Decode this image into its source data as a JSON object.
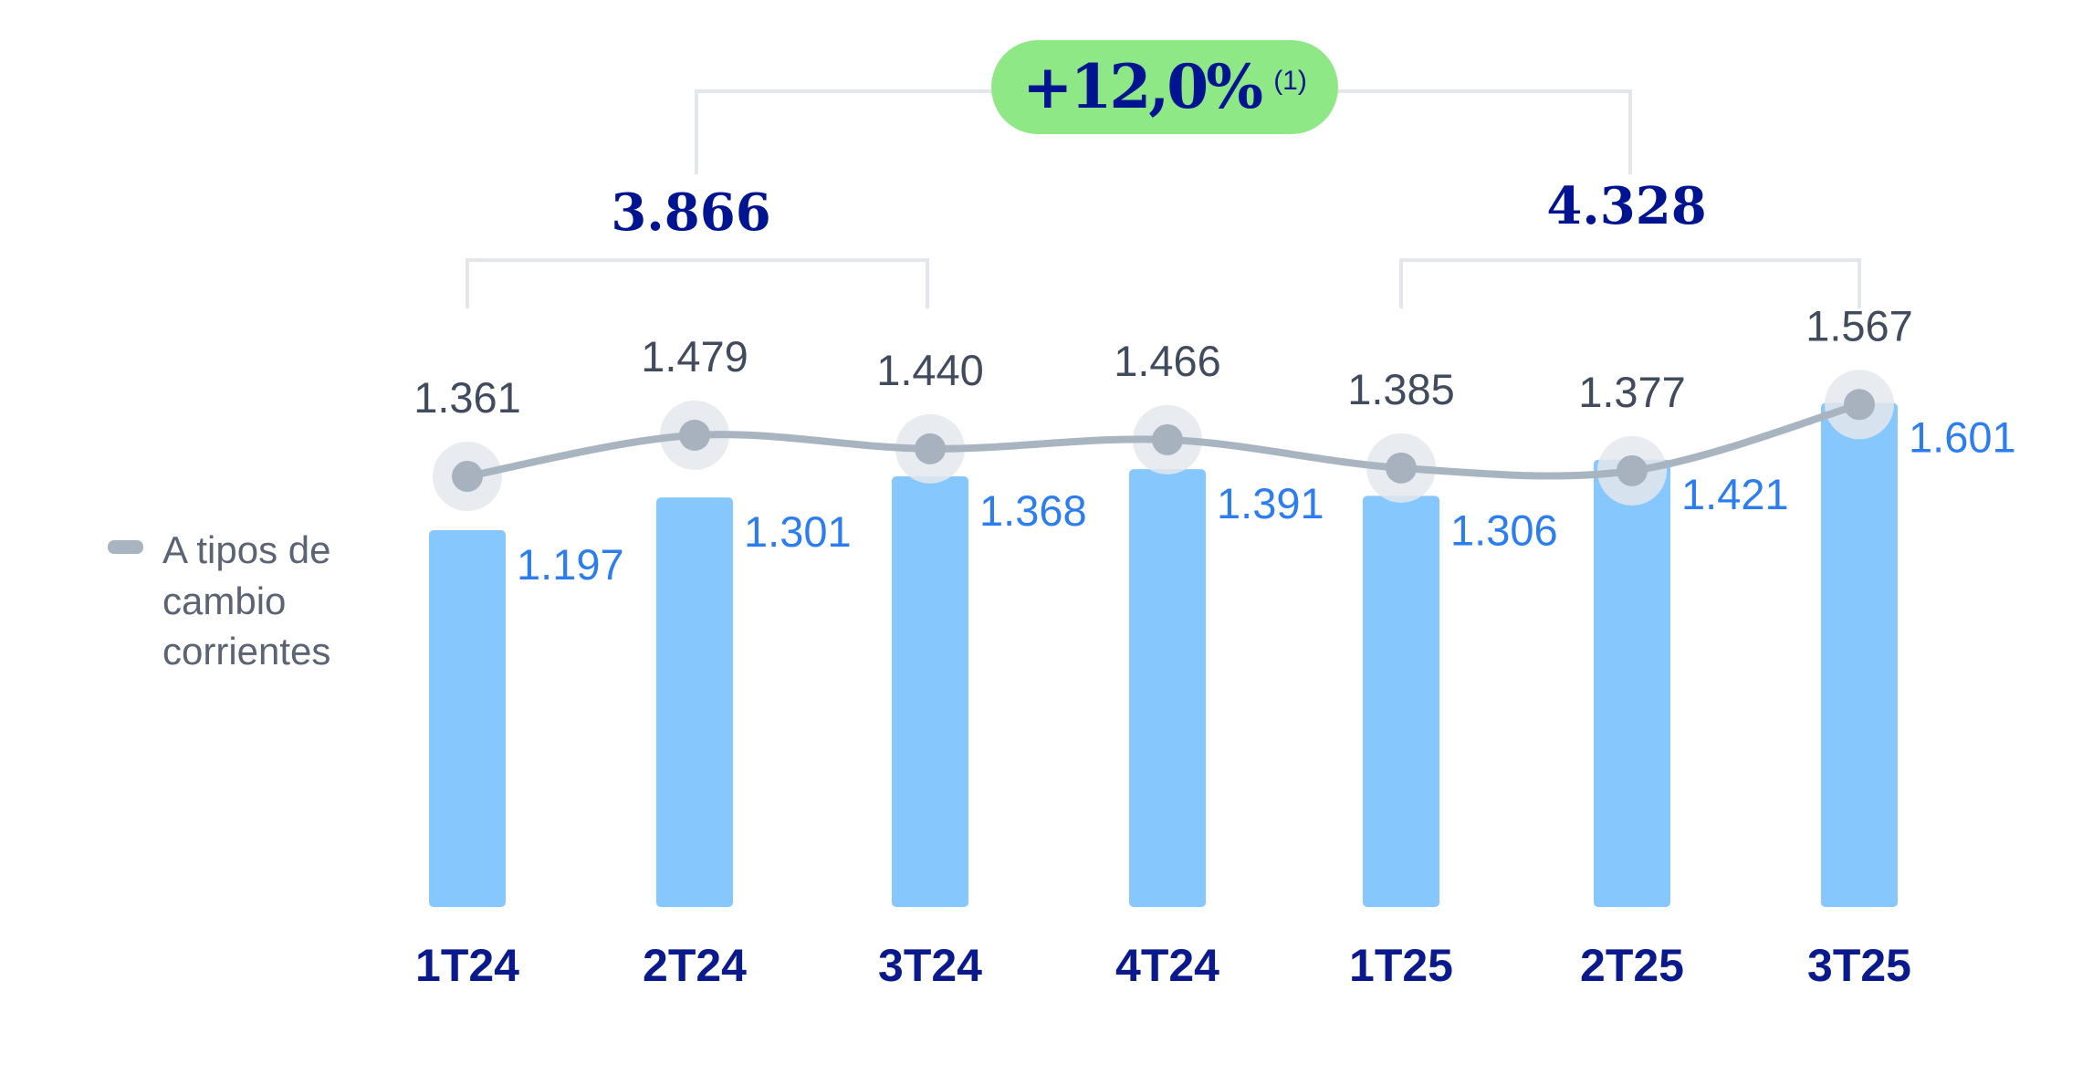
{
  "chart_data": {
    "type": "bar",
    "categories": [
      "1T24",
      "2T24",
      "3T24",
      "4T24",
      "1T25",
      "2T25",
      "3T25"
    ],
    "series": [
      {
        "values": [
          1.197,
          1.301,
          1.368,
          1.391,
          1.306,
          1.421,
          1.601
        ],
        "labels": [
          "1.197",
          "1.301",
          "1.368",
          "1.391",
          "1.306",
          "1.421",
          "1.601"
        ],
        "kind": "bar",
        "color": "#86c8fd",
        "label_color": "#2c7ef0"
      },
      {
        "name": "A tipos de cambio corrientes",
        "values": [
          1.361,
          1.479,
          1.44,
          1.466,
          1.385,
          1.377,
          1.567
        ],
        "labels": [
          "1.361",
          "1.479",
          "1.440",
          "1.466",
          "1.385",
          "1.377",
          "1.567"
        ],
        "kind": "line",
        "color": "#a9b4c1",
        "label_color": "#414b5e"
      }
    ],
    "legend": {
      "lines": [
        "A tipos de",
        "cambio",
        "corrientes"
      ],
      "placement": "left"
    },
    "group_totals": [
      {
        "label": "3.866",
        "categories": [
          "1T24",
          "3T24"
        ]
      },
      {
        "label": "4.328",
        "categories": [
          "1T25",
          "3T25"
        ]
      }
    ],
    "change_badge": {
      "label": "+12,0%",
      "footnote": "(1)",
      "color": "#8de885"
    },
    "grid": false,
    "axes_visible": false
  }
}
